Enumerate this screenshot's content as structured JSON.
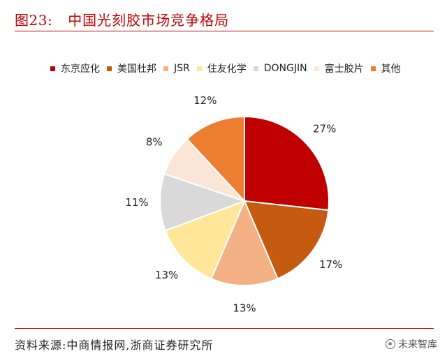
{
  "header": {
    "figure_label": "图23:",
    "title": "中国光刻胶市场竞争格局"
  },
  "chart_data": {
    "type": "pie",
    "title": "中国光刻胶市场竞争格局",
    "legend_position": "top",
    "categories": [
      "东京应化",
      "美国杜邦",
      "JSR",
      "住友化学",
      "DONGJIN",
      "富士胶片",
      "其他"
    ],
    "values": [
      27,
      17,
      13,
      13,
      11,
      8,
      12
    ],
    "labels": [
      "27%",
      "17%",
      "13%",
      "13%",
      "11%",
      "8%",
      "12%"
    ],
    "colors": [
      "#c00000",
      "#c55a11",
      "#f4b183",
      "#ffe699",
      "#d9d9d9",
      "#fbe5d6",
      "#ed7d31"
    ]
  },
  "footer": {
    "source": "资料来源:中商情报网,浙商证券研究所"
  },
  "watermark": {
    "text": "未来智库",
    "icon": "watermark-logo-icon"
  }
}
